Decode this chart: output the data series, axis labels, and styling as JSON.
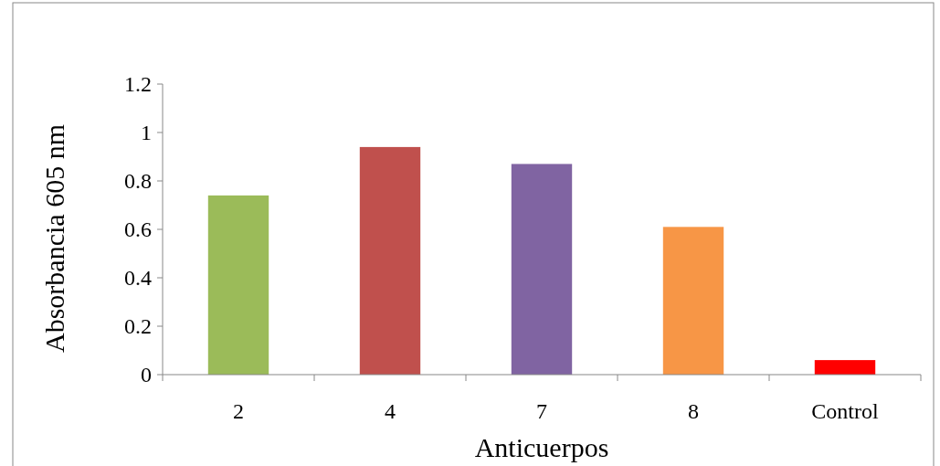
{
  "chart_data": {
    "type": "bar",
    "xlabel": "Anticuerpos",
    "ylabel": "Absorbancia 605 nm",
    "categories": [
      "2",
      "4",
      "7",
      "8",
      "Control"
    ],
    "values": [
      0.74,
      0.94,
      0.87,
      0.61,
      0.06
    ],
    "colors": [
      "#9bbb59",
      "#c0504d",
      "#8064a2",
      "#f79646",
      "#ff0000"
    ],
    "ylim": [
      0,
      1.2
    ],
    "yticks": [
      0,
      0.2,
      0.4,
      0.6,
      0.8,
      1,
      1.2
    ],
    "grid": false
  }
}
